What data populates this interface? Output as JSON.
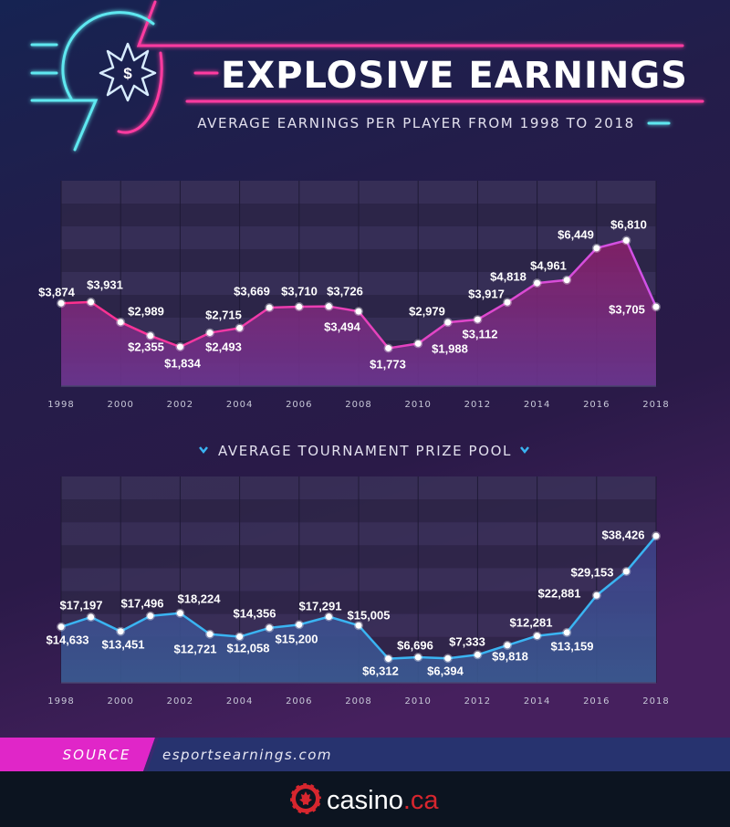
{
  "header": {
    "title": "EXPLOSIVE EARNINGS",
    "icon": "dollar-starburst-icon"
  },
  "source": {
    "label": "SOURCE",
    "value": "esportsearnings.com"
  },
  "logo": {
    "name": "casino",
    "suffix": ".ca",
    "icon": "poker-chip-maple-leaf-icon"
  },
  "colors": {
    "pink_accent": "#ff3ba0",
    "cyan_accent": "#5ee8f0",
    "line_top": "#e03cc8",
    "line_bottom": "#3ab4f2",
    "source_pink": "#e026c8",
    "source_navy": "#27336f",
    "logo_red": "#d7262e"
  },
  "chart_data": [
    {
      "type": "area",
      "title": "AVERAGE EARNINGS PER PLAYER FROM 1998 TO 2018",
      "xlabel": "",
      "ylabel": "",
      "x": [
        1998,
        1999,
        2000,
        2001,
        2002,
        2003,
        2004,
        2005,
        2006,
        2007,
        2008,
        2009,
        2010,
        2011,
        2012,
        2013,
        2014,
        2015,
        2016,
        2017,
        2018
      ],
      "values": [
        3874,
        3931,
        2989,
        2355,
        1834,
        2493,
        2715,
        3669,
        3710,
        3726,
        3494,
        1773,
        1988,
        2979,
        3112,
        3917,
        4818,
        4961,
        6449,
        6810,
        3705
      ],
      "value_prefix": "$",
      "x_tick_labels": [
        "1998",
        "2000",
        "2002",
        "2004",
        "2006",
        "2008",
        "2010",
        "2012",
        "2014",
        "2016",
        "2018"
      ],
      "ylim": [
        0,
        9600
      ],
      "grid": true,
      "data_labels": true
    },
    {
      "type": "area",
      "title": "AVERAGE TOURNAMENT PRIZE POOL",
      "xlabel": "",
      "ylabel": "",
      "x": [
        1998,
        1999,
        2000,
        2001,
        2002,
        2003,
        2004,
        2005,
        2006,
        2007,
        2008,
        2009,
        2010,
        2011,
        2012,
        2013,
        2014,
        2015,
        2016,
        2017,
        2018
      ],
      "values": [
        14633,
        17197,
        13451,
        17496,
        18224,
        12721,
        12058,
        14356,
        15200,
        17291,
        15005,
        6312,
        6696,
        6394,
        7333,
        9818,
        12281,
        13159,
        22881,
        29153,
        38426
      ],
      "value_prefix": "$",
      "x_tick_labels": [
        "1998",
        "2000",
        "2002",
        "2004",
        "2006",
        "2008",
        "2010",
        "2012",
        "2014",
        "2016",
        "2018"
      ],
      "ylim": [
        0,
        54000
      ],
      "grid": true,
      "data_labels": true
    }
  ]
}
